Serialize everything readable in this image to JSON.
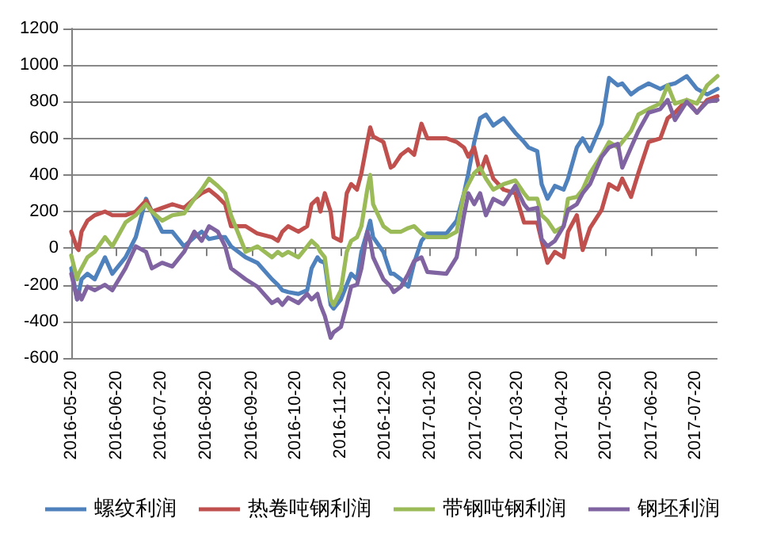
{
  "chart_data": {
    "type": "line",
    "x": [
      "2016-05-20",
      "2016-05-24",
      "2016-05-25",
      "2016-05-27",
      "2016-05-31",
      "2016-06-05",
      "2016-06-12",
      "2016-06-17",
      "2016-06-26",
      "2016-07-03",
      "2016-07-10",
      "2016-07-14",
      "2016-07-21",
      "2016-07-28",
      "2016-08-05",
      "2016-08-12",
      "2016-08-17",
      "2016-08-22",
      "2016-08-28",
      "2016-09-02",
      "2016-09-06",
      "2016-09-16",
      "2016-09-24",
      "2016-10-04",
      "2016-10-08",
      "2016-10-11",
      "2016-10-15",
      "2016-10-22",
      "2016-10-28",
      "2016-10-31",
      "2016-11-04",
      "2016-11-06",
      "2016-11-09",
      "2016-11-13",
      "2016-11-15",
      "2016-11-20",
      "2016-11-24",
      "2016-11-27",
      "2016-12-01",
      "2016-12-04",
      "2016-12-08",
      "2016-12-10",
      "2016-12-12",
      "2016-12-19",
      "2016-12-24",
      "2016-12-26",
      "2016-12-31",
      "2017-01-05",
      "2017-01-09",
      "2017-01-14",
      "2017-01-18",
      "2017-01-31",
      "2017-02-07",
      "2017-02-12",
      "2017-02-15",
      "2017-02-19",
      "2017-02-23",
      "2017-02-27",
      "2017-03-04",
      "2017-03-11",
      "2017-03-19",
      "2017-03-25",
      "2017-03-28",
      "2017-04-03",
      "2017-04-06",
      "2017-04-10",
      "2017-04-15",
      "2017-04-21",
      "2017-04-24",
      "2017-04-30",
      "2017-05-04",
      "2017-05-09",
      "2017-05-17",
      "2017-05-22",
      "2017-05-28",
      "2017-05-31",
      "2017-06-06",
      "2017-06-11",
      "2017-06-18",
      "2017-06-26",
      "2017-07-01",
      "2017-07-06",
      "2017-07-14",
      "2017-07-21",
      "2017-07-28",
      "2017-08-04"
    ],
    "series": [
      {
        "name": "螺纹利润",
        "color": "#4f81bd",
        "values": [
          -110,
          -280,
          -250,
          -170,
          -140,
          -170,
          -50,
          -140,
          -50,
          60,
          270,
          200,
          90,
          90,
          10,
          60,
          90,
          50,
          60,
          60,
          10,
          -50,
          -80,
          -170,
          -200,
          -230,
          -240,
          -250,
          -230,
          -110,
          -50,
          -70,
          -80,
          -310,
          -330,
          -280,
          -200,
          -140,
          -170,
          -20,
          90,
          150,
          60,
          -20,
          -140,
          -140,
          -170,
          -210,
          -80,
          40,
          80,
          80,
          150,
          300,
          410,
          580,
          710,
          730,
          670,
          710,
          630,
          580,
          550,
          530,
          350,
          270,
          340,
          320,
          380,
          550,
          600,
          530,
          680,
          930,
          890,
          900,
          840,
          870,
          900,
          870,
          890,
          900,
          940,
          870,
          840,
          870
        ]
      },
      {
        "name": "热卷吨钢利润",
        "color": "#c0504d",
        "values": [
          90,
          0,
          -10,
          90,
          150,
          180,
          200,
          180,
          180,
          200,
          260,
          200,
          220,
          240,
          220,
          270,
          300,
          320,
          280,
          240,
          120,
          120,
          80,
          60,
          40,
          90,
          120,
          90,
          120,
          240,
          270,
          200,
          300,
          200,
          60,
          40,
          300,
          350,
          320,
          410,
          580,
          660,
          610,
          580,
          440,
          450,
          510,
          540,
          510,
          680,
          600,
          600,
          580,
          550,
          500,
          550,
          410,
          500,
          380,
          320,
          300,
          140,
          140,
          140,
          40,
          -80,
          -20,
          -50,
          90,
          180,
          -10,
          110,
          210,
          350,
          320,
          380,
          280,
          410,
          580,
          600,
          710,
          740,
          810,
          740,
          810,
          830
        ]
      },
      {
        "name": "带钢吨钢利润",
        "color": "#9bbb59",
        "values": [
          -40,
          -170,
          -140,
          -110,
          -50,
          -20,
          60,
          10,
          140,
          180,
          240,
          200,
          150,
          180,
          190,
          270,
          320,
          380,
          340,
          300,
          180,
          -20,
          10,
          -50,
          -20,
          -40,
          -20,
          -50,
          10,
          40,
          10,
          -20,
          -50,
          -280,
          -310,
          -230,
          -20,
          40,
          60,
          120,
          320,
          400,
          240,
          120,
          90,
          90,
          90,
          110,
          120,
          80,
          60,
          60,
          90,
          300,
          350,
          410,
          440,
          380,
          320,
          350,
          370,
          300,
          270,
          270,
          180,
          150,
          90,
          120,
          270,
          280,
          320,
          410,
          510,
          580,
          550,
          580,
          640,
          730,
          760,
          790,
          890,
          790,
          810,
          790,
          890,
          940
        ]
      },
      {
        "name": "钢坯利润",
        "color": "#8064a2",
        "values": [
          -140,
          -280,
          -240,
          -280,
          -210,
          -230,
          -200,
          -230,
          -110,
          10,
          -20,
          -110,
          -80,
          -100,
          -20,
          90,
          40,
          120,
          90,
          10,
          -110,
          -170,
          -210,
          -300,
          -280,
          -310,
          -270,
          -300,
          -250,
          -280,
          -250,
          -310,
          -370,
          -490,
          -460,
          -430,
          -310,
          -210,
          -200,
          -110,
          90,
          40,
          -50,
          -170,
          -210,
          -240,
          -210,
          -140,
          -70,
          -50,
          -130,
          -140,
          -50,
          180,
          300,
          240,
          300,
          180,
          270,
          240,
          340,
          240,
          210,
          220,
          50,
          10,
          40,
          120,
          210,
          240,
          300,
          350,
          500,
          550,
          570,
          440,
          550,
          640,
          740,
          760,
          810,
          700,
          800,
          740,
          800,
          810
        ]
      }
    ],
    "xlim": [
      "2016-05-20",
      "2017-08-04"
    ],
    "xticks": [
      "2016-05-20",
      "2016-06-20",
      "2016-07-20",
      "2016-08-20",
      "2016-09-20",
      "2016-10-20",
      "2016-11-20",
      "2016-12-20",
      "2017-01-20",
      "2017-02-20",
      "2017-03-20",
      "2017-04-20",
      "2017-05-20",
      "2017-06-20",
      "2017-07-20"
    ],
    "ylim": [
      -600,
      1200
    ],
    "yticks": [
      -600,
      -400,
      -200,
      0,
      200,
      400,
      600,
      800,
      1000,
      1200
    ],
    "grid": "y",
    "legend": "bottom",
    "marker": "none",
    "line_style": "solid"
  }
}
